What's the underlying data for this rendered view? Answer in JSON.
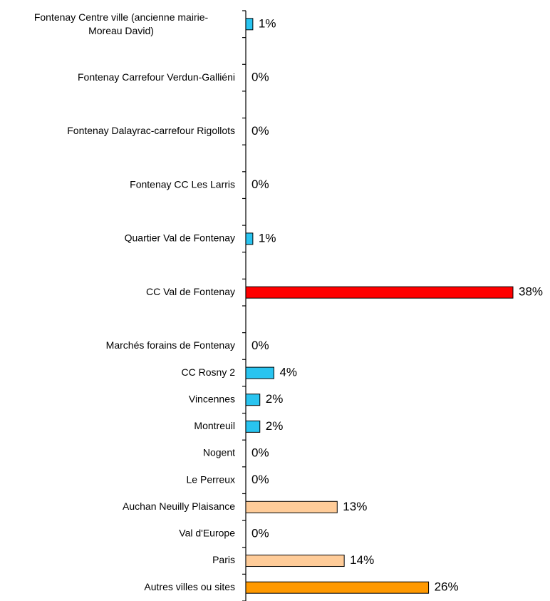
{
  "chart_data": {
    "type": "bar",
    "orientation": "horizontal",
    "categories": [
      "Fontenay Centre ville (ancienne mairie-Moreau David)",
      null,
      "Fontenay Carrefour Verdun-Galliéni",
      null,
      "Fontenay Dalayrac-carrefour Rigollots",
      null,
      "Fontenay CC Les Larris",
      null,
      "Quartier Val de Fontenay",
      null,
      "CC Val de Fontenay",
      null,
      "Marchés forains de Fontenay",
      "CC Rosny 2",
      "Vincennes",
      "Montreuil",
      "Nogent",
      "Le Perreux",
      "Auchan Neuilly Plaisance",
      "Val d'Europe",
      "Paris",
      "Autres villes ou sites"
    ],
    "values": [
      1,
      null,
      0,
      null,
      0,
      null,
      0,
      null,
      1,
      null,
      38,
      null,
      0,
      4,
      2,
      2,
      0,
      0,
      13,
      0,
      14,
      26
    ],
    "value_labels": [
      "1%",
      null,
      "0%",
      null,
      "0%",
      null,
      "0%",
      null,
      "1%",
      null,
      "38%",
      null,
      "0%",
      "4%",
      "2%",
      "2%",
      "0%",
      "0%",
      "13%",
      "0%",
      "14%",
      "26%"
    ],
    "colors": [
      "#29c4f0",
      null,
      "#29c4f0",
      null,
      "#29c4f0",
      null,
      "#29c4f0",
      null,
      "#29c4f0",
      null,
      "#ff0000",
      null,
      "#29c4f0",
      "#29c4f0",
      "#29c4f0",
      "#29c4f0",
      "#29c4f0",
      "#29c4f0",
      "#ffcc99",
      "#ffcc99",
      "#ffcc99",
      "#ff9900"
    ]
  }
}
